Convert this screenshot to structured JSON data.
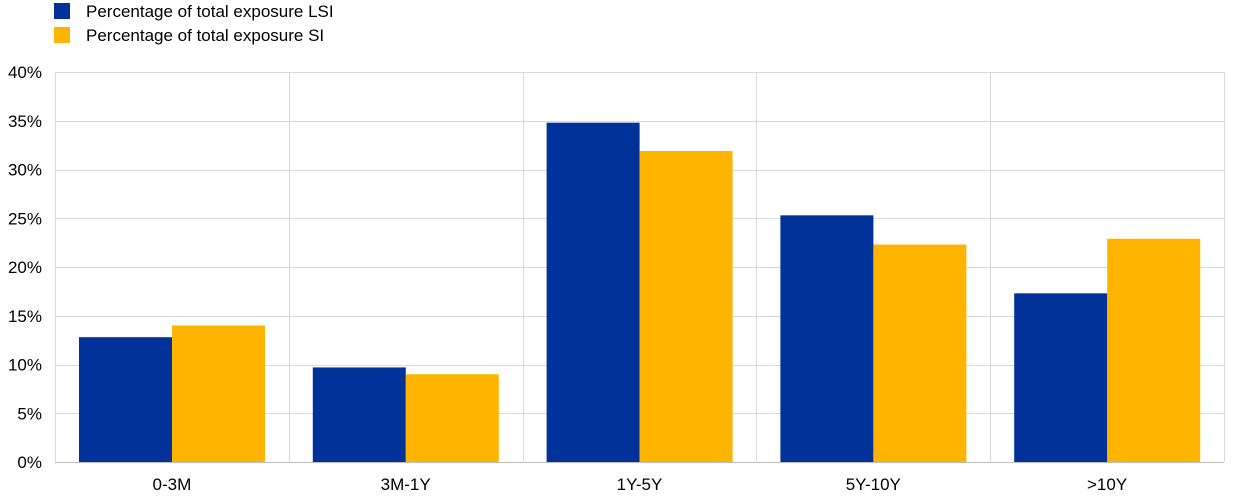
{
  "chart_data": {
    "type": "bar",
    "title": "",
    "xlabel": "",
    "ylabel": "",
    "categories": [
      "0-3M",
      "3M-1Y",
      "1Y-5Y",
      "5Y-10Y",
      ">10Y"
    ],
    "series": [
      {
        "name": "Percentage of total exposure LSI",
        "color": "#003299",
        "values": [
          12.8,
          9.7,
          34.8,
          25.3,
          17.3
        ]
      },
      {
        "name": "Percentage of total exposure SI",
        "color": "#FFB400",
        "values": [
          14.0,
          9.0,
          31.9,
          22.3,
          22.9
        ]
      }
    ],
    "ylim": [
      0,
      40
    ],
    "yticks": [
      "0%",
      "5%",
      "10%",
      "15%",
      "20%",
      "25%",
      "30%",
      "35%",
      "40%"
    ],
    "grid": true,
    "legend_position": "top-left"
  }
}
